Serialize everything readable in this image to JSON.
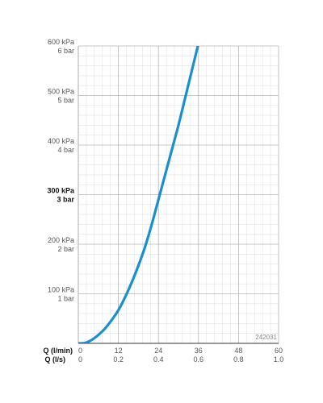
{
  "chart_data": {
    "type": "line",
    "x_axes": [
      {
        "label": "Q (l/min)",
        "ticks": [
          "0",
          "12",
          "24",
          "36",
          "48",
          "60"
        ],
        "range": [
          0,
          60
        ]
      },
      {
        "label": "Q (l/s)",
        "ticks": [
          "0",
          "0.2",
          "0.4",
          "0.6",
          "0.8",
          "1.0"
        ],
        "range": [
          0,
          1.0
        ]
      }
    ],
    "y_ticks": [
      {
        "value": 100,
        "kpa": "100 kPa",
        "bar": "1 bar",
        "emphasis": false
      },
      {
        "value": 200,
        "kpa": "200 kPa",
        "bar": "2 bar",
        "emphasis": false
      },
      {
        "value": 300,
        "kpa": "300 kPa",
        "bar": "3 bar",
        "emphasis": true
      },
      {
        "value": 400,
        "kpa": "400 kPa",
        "bar": "4 bar",
        "emphasis": false
      },
      {
        "value": 500,
        "kpa": "500 kPa",
        "bar": "5 bar",
        "emphasis": false
      },
      {
        "value": 600,
        "kpa": "600 kPa",
        "bar": "6 bar",
        "emphasis": false
      }
    ],
    "ylim": [
      0,
      600
    ],
    "xlim": [
      0,
      60
    ],
    "grid": true,
    "reference_code": "242031",
    "series": [
      {
        "color": "#1a8fd0",
        "x": [
          0,
          2,
          4,
          6,
          8,
          10,
          12,
          14,
          16,
          18,
          20,
          22,
          24,
          26,
          28,
          30,
          32,
          34,
          36,
          37
        ],
        "y": [
          0,
          1,
          7,
          17,
          30,
          47,
          67,
          93,
          123,
          157,
          195,
          240,
          290,
          340,
          390,
          440,
          495,
          550,
          605,
          630
        ]
      }
    ]
  }
}
